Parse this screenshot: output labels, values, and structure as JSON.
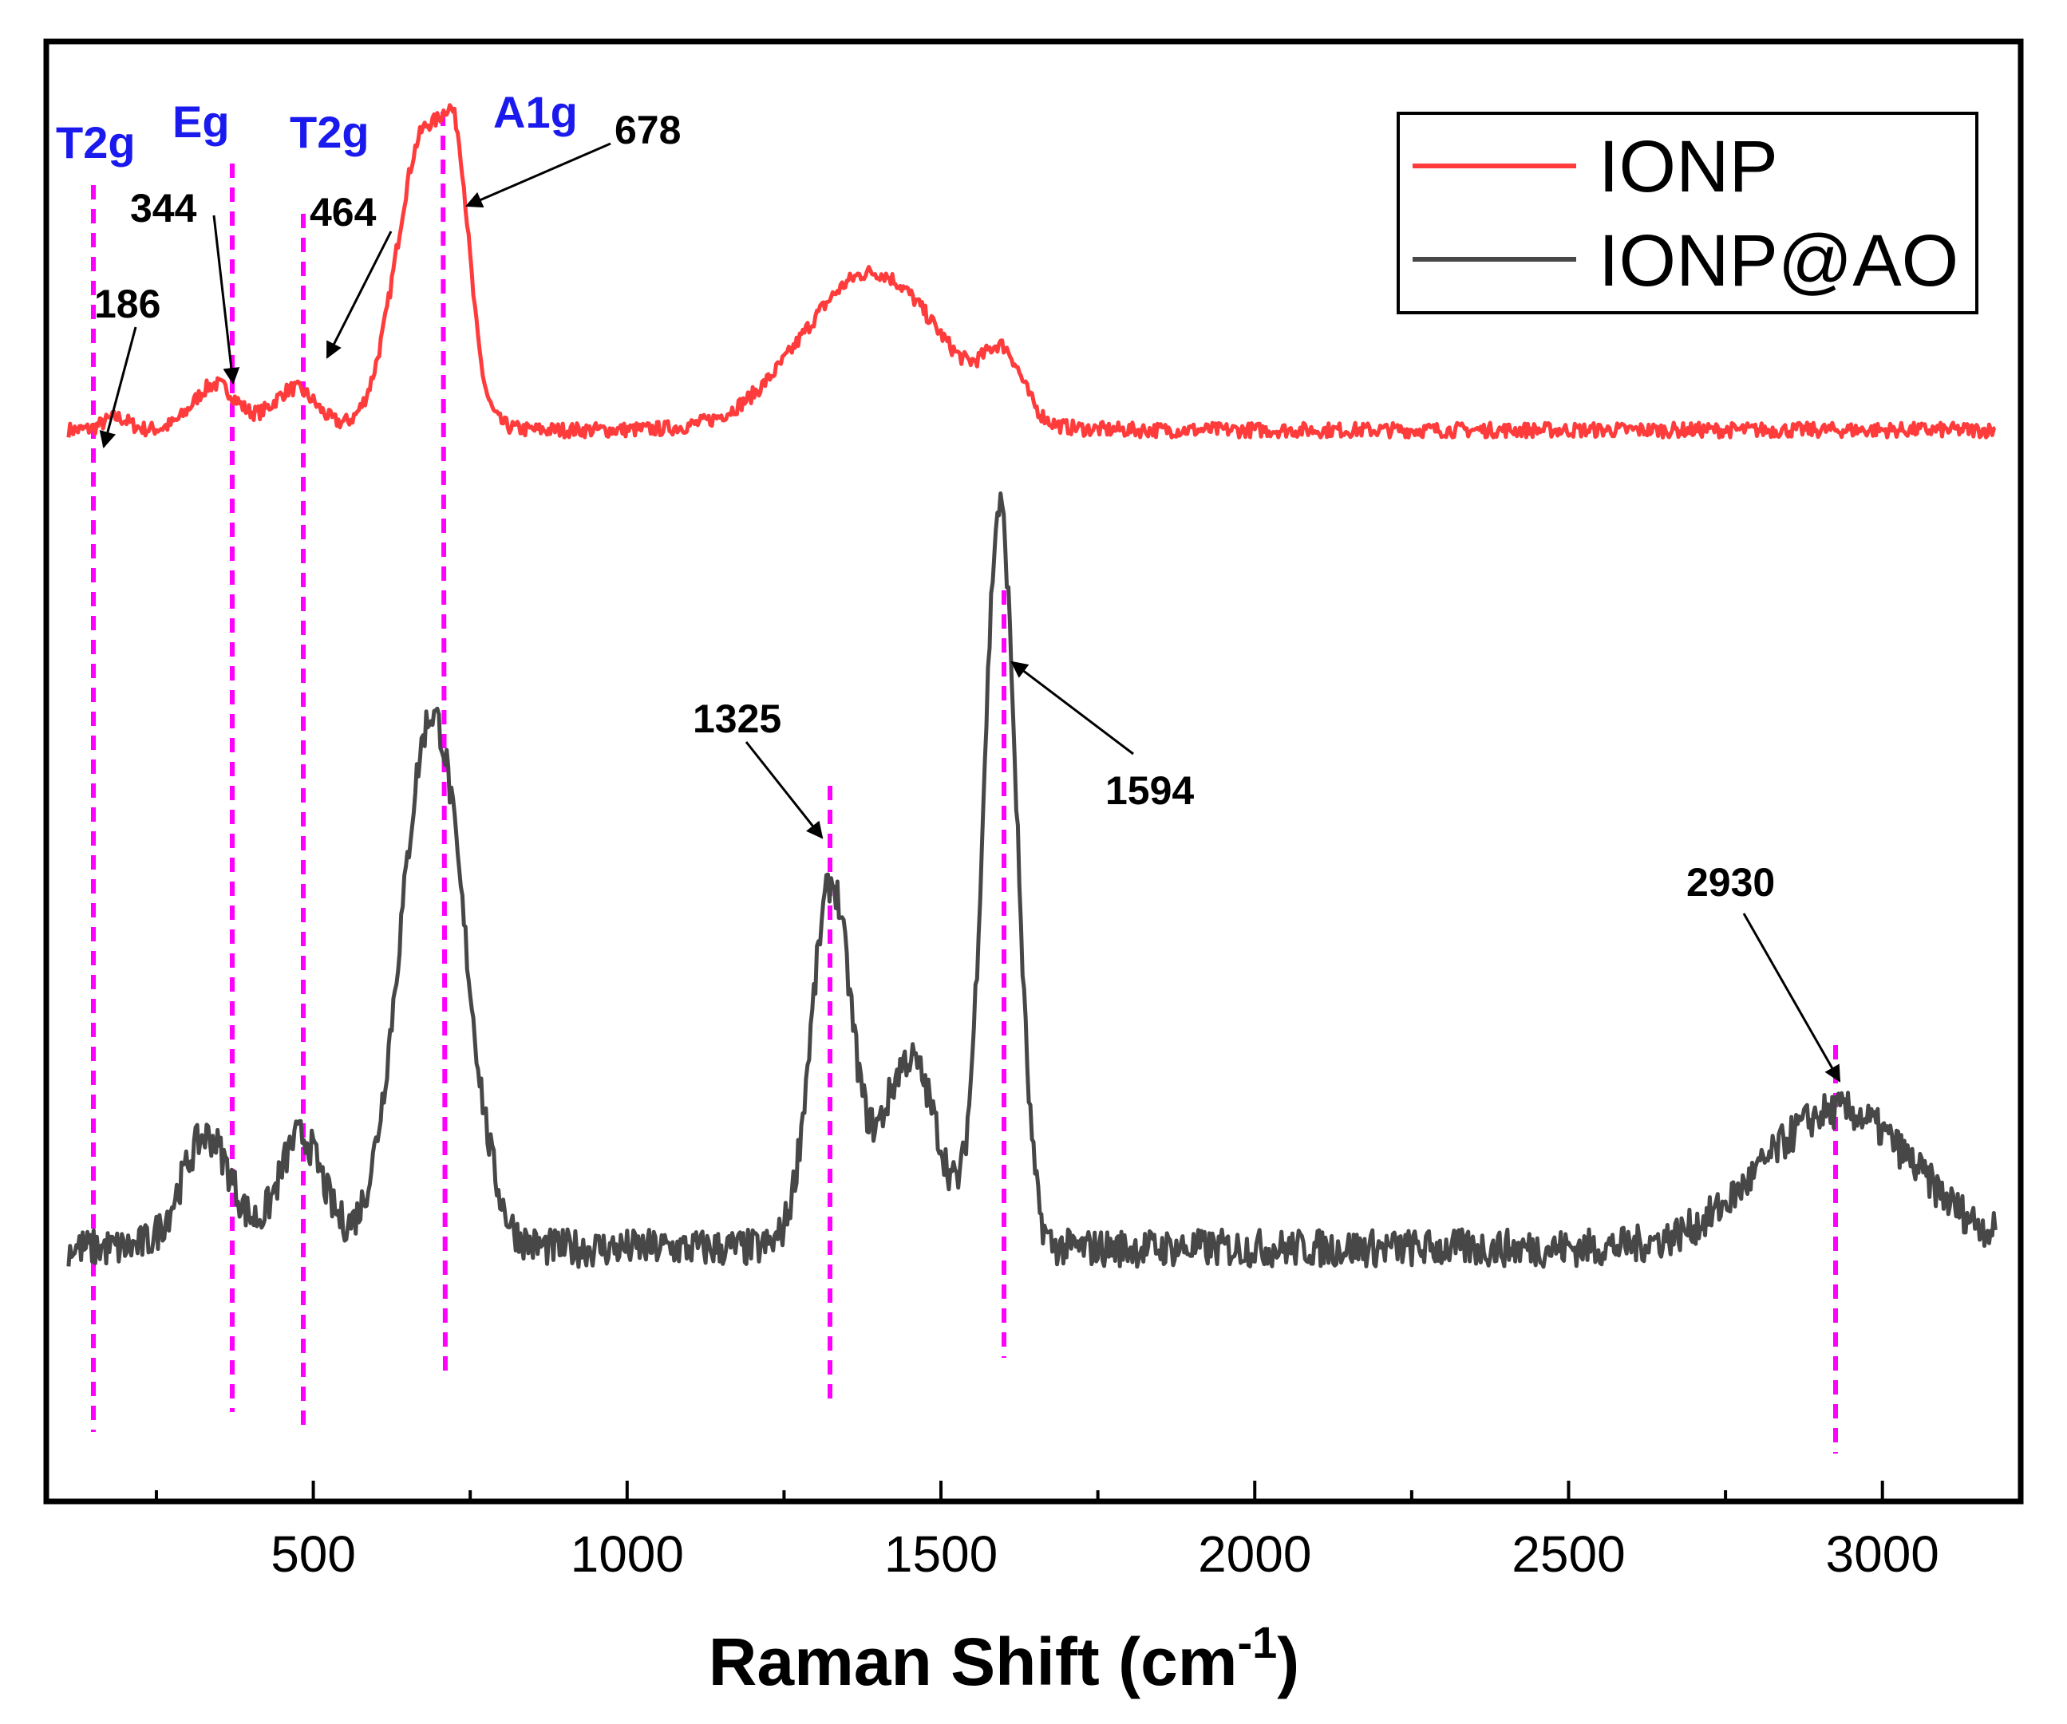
{
  "chart_data": {
    "type": "line",
    "title": "",
    "xlabel": "Raman Shift (cm",
    "xlabel_sup": "-1",
    "xlabel_close": ")",
    "ylabel": "",
    "xlim": [
      100,
      3200
    ],
    "x_ticks": [
      500,
      1000,
      1500,
      2000,
      2500,
      3000
    ],
    "x_tick_labels": [
      "500",
      "1000",
      "1500",
      "2000",
      "2500",
      "3000"
    ],
    "legend_position": "top-right",
    "colors": {
      "IONP": "#ff3b3b",
      "IONP@AO": "#474747",
      "guide": "#ff00ff",
      "mode": "#1a1aee",
      "axis": "#000000"
    },
    "series": [
      {
        "name": "IONP",
        "noise": 0.018,
        "baseline": 0.05,
        "peaks": [
          {
            "center": 186,
            "height": 0.03,
            "width": 20
          },
          {
            "center": 344,
            "height": 0.11,
            "width": 35
          },
          {
            "center": 470,
            "height": 0.1,
            "width": 35
          },
          {
            "center": 678,
            "height": 0.72,
            "width": 45
          },
          {
            "center": 730,
            "height": 0.35,
            "width": 20
          },
          {
            "center": 1390,
            "height": 0.38,
            "width": 110
          },
          {
            "center": 1600,
            "height": 0.14,
            "width": 30
          }
        ]
      },
      {
        "name": "IONP@AO",
        "noise": 0.022,
        "baseline": 0.07,
        "peaks": [
          {
            "center": 330,
            "height": 0.13,
            "width": 40
          },
          {
            "center": 480,
            "height": 0.13,
            "width": 35
          },
          {
            "center": 690,
            "height": 0.62,
            "width": 50
          },
          {
            "center": 1325,
            "height": 0.42,
            "width": 32
          },
          {
            "center": 1450,
            "height": 0.22,
            "width": 45
          },
          {
            "center": 1594,
            "height": 0.86,
            "width": 26
          },
          {
            "center": 2930,
            "height": 0.16,
            "width": 120
          }
        ]
      }
    ],
    "guide_lines": [
      {
        "x": 186
      },
      {
        "x": 344
      },
      {
        "x": 464
      },
      {
        "x": 678
      },
      {
        "x": 1325
      },
      {
        "x": 1594
      },
      {
        "x": 2930
      }
    ],
    "mode_labels": [
      "T2g",
      "Eg",
      "T2g",
      "A1g"
    ],
    "peak_labels": [
      "186",
      "344",
      "464",
      "678",
      "1325",
      "1594",
      "2930"
    ]
  }
}
